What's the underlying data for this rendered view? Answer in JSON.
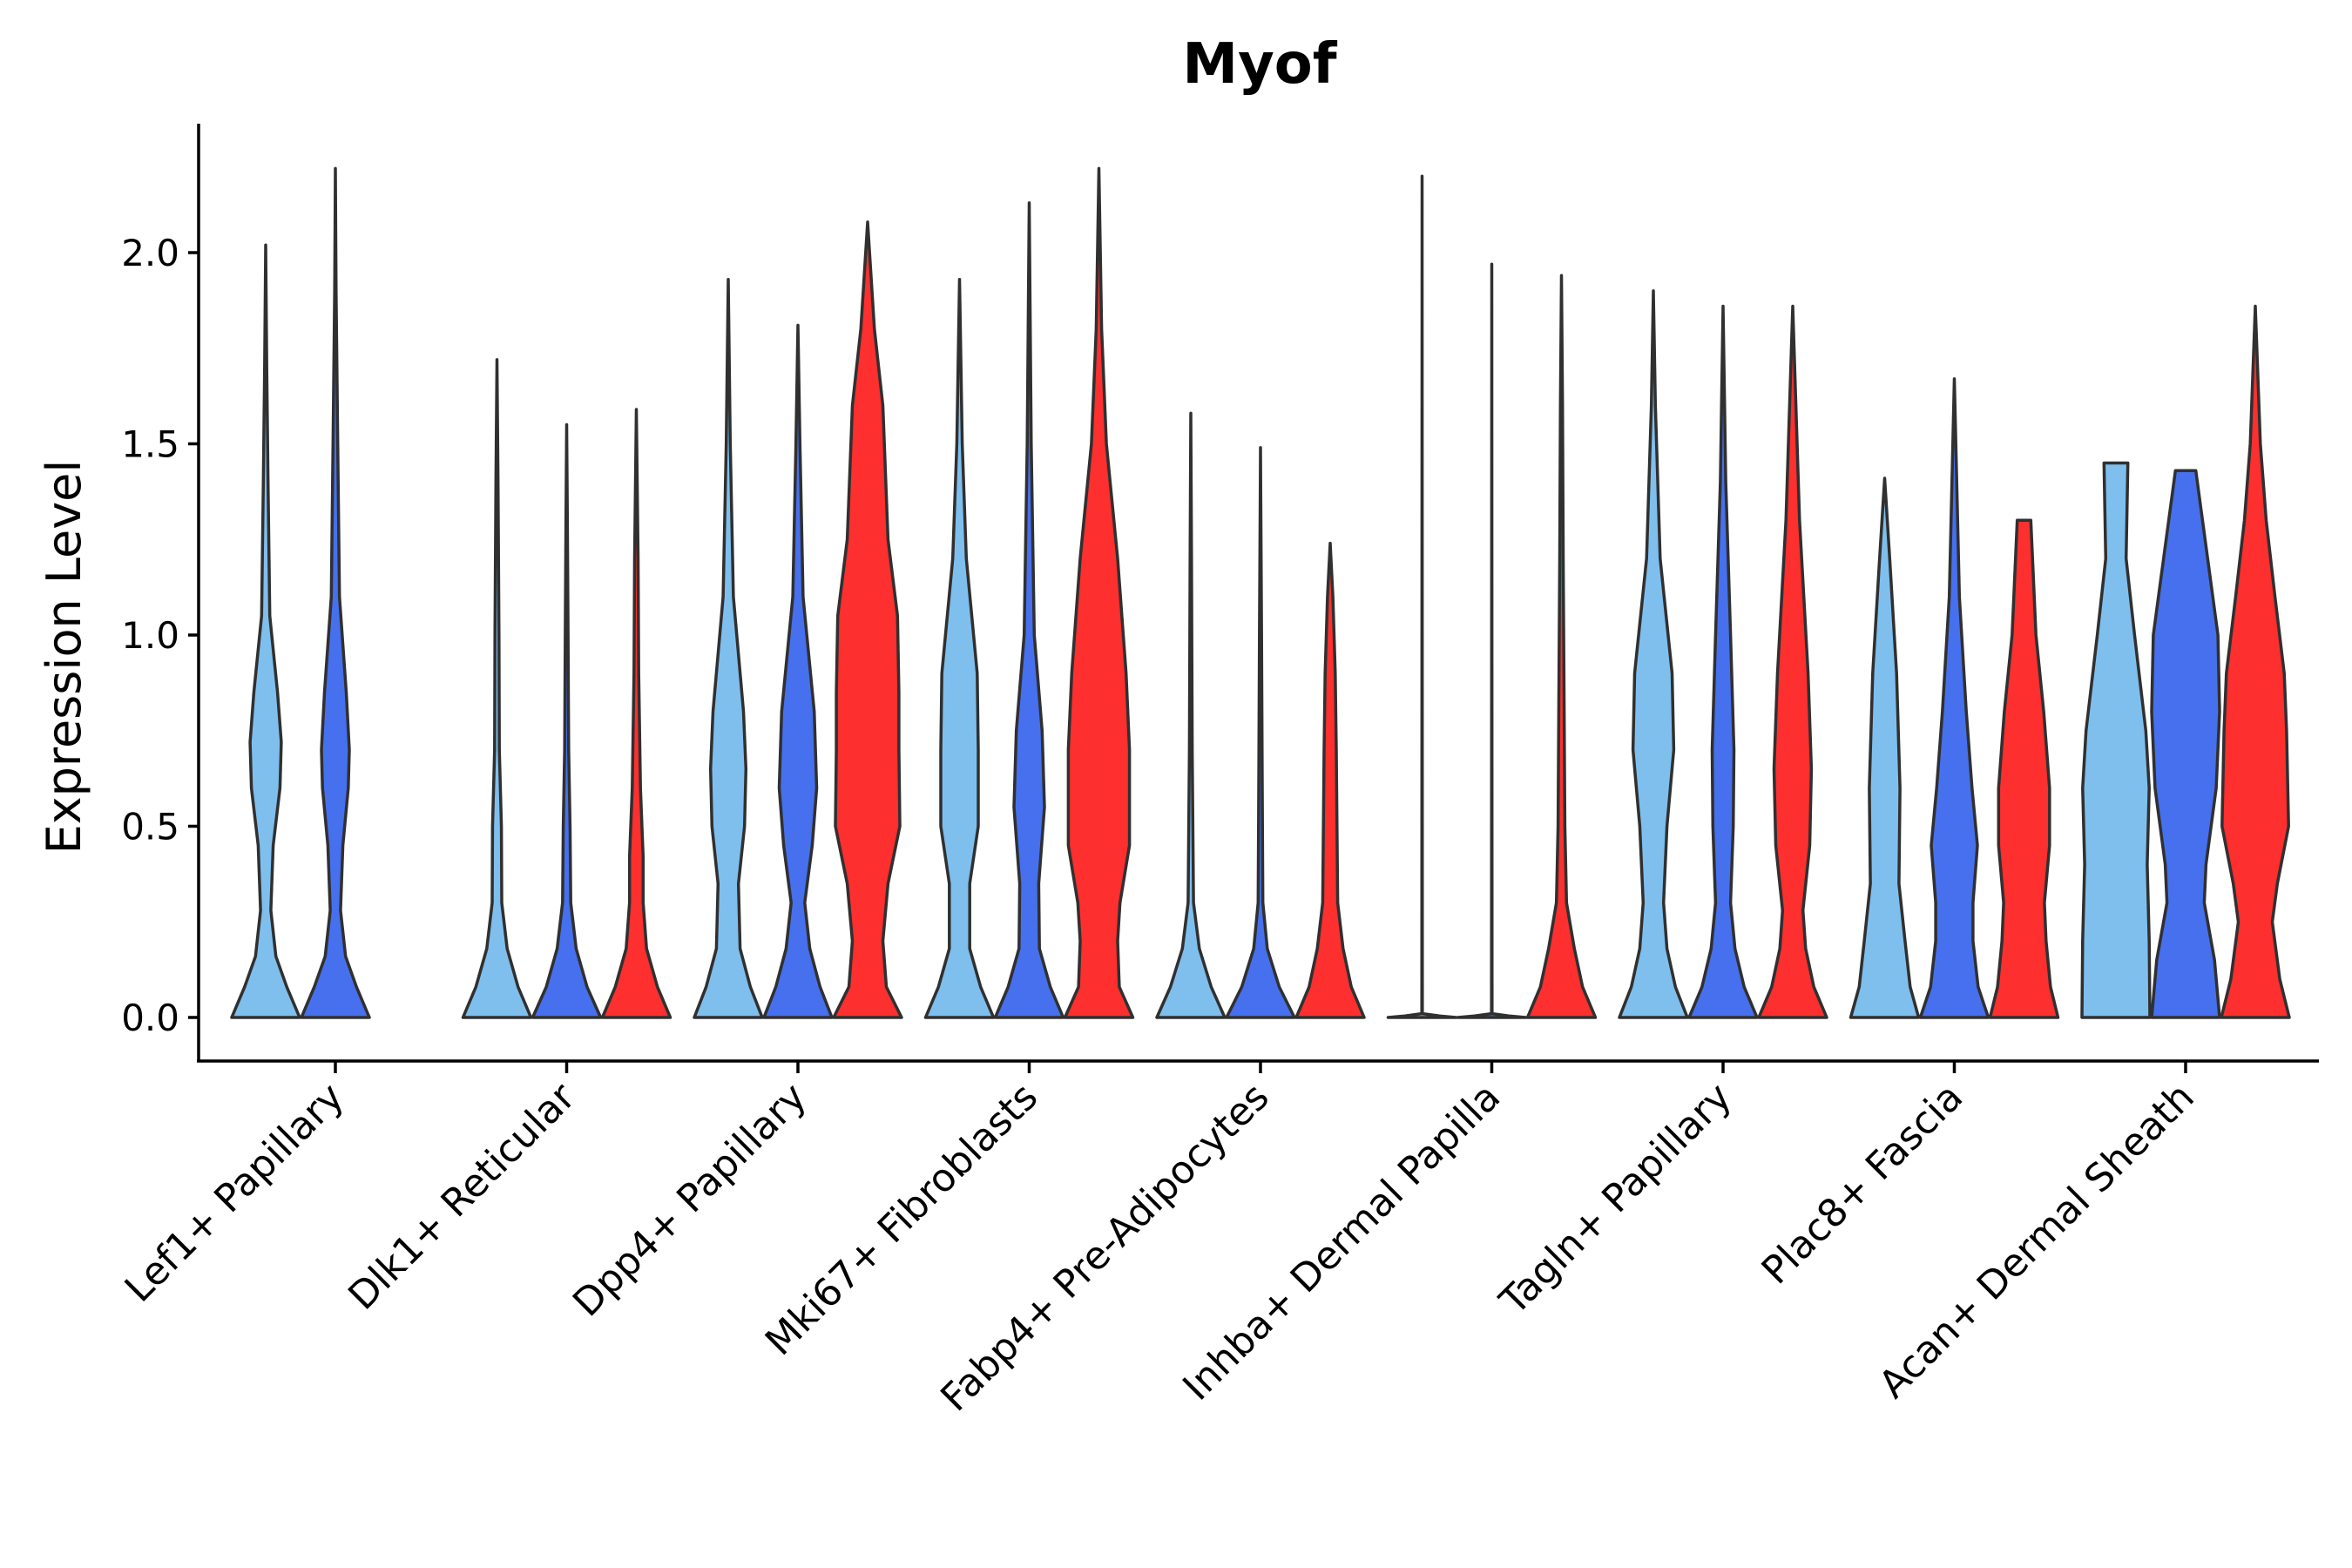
{
  "chart_data": {
    "type": "violin",
    "title": "Myof",
    "xlabel": "",
    "ylabel": "Expression Level",
    "ylim": [
      -0.11,
      2.33
    ],
    "yticks": [
      "0.0",
      "0.5",
      "1.0",
      "1.5",
      "2.0"
    ],
    "categories": [
      "Lef1+ Papillary",
      "Dlk1+ Reticular",
      "Dpp4+ Papillary",
      "Mki67+ Fibroblasts",
      "Fabp4+ Pre-Adipocytes",
      "Inhba+ Dermal Papilla",
      "Tagln+ Papillary",
      "Plac8+ Fascia",
      "Acan+ Dermal Sheath"
    ],
    "series_colors": [
      "#7fbfee",
      "#4670ee",
      "#fd2f2f"
    ],
    "violins": [
      {
        "category": 0,
        "series": 0,
        "max": 2.02,
        "profile": [
          [
            0,
            1
          ],
          [
            0.08,
            0.62
          ],
          [
            0.16,
            0.3
          ],
          [
            0.28,
            0.15
          ],
          [
            0.45,
            0.22
          ],
          [
            0.6,
            0.42
          ],
          [
            0.72,
            0.46
          ],
          [
            0.85,
            0.35
          ],
          [
            1.05,
            0.12
          ],
          [
            1.4,
            0.07
          ],
          [
            1.7,
            0.03
          ],
          [
            2.02,
            0
          ]
        ]
      },
      {
        "category": 0,
        "series": 1,
        "max": 2.22,
        "profile": [
          [
            0,
            1
          ],
          [
            0.08,
            0.62
          ],
          [
            0.16,
            0.3
          ],
          [
            0.28,
            0.15
          ],
          [
            0.45,
            0.22
          ],
          [
            0.6,
            0.38
          ],
          [
            0.7,
            0.41
          ],
          [
            0.85,
            0.32
          ],
          [
            1.1,
            0.12
          ],
          [
            1.5,
            0.07
          ],
          [
            1.9,
            0.02
          ],
          [
            2.22,
            0
          ]
        ]
      },
      {
        "category": 1,
        "series": 0,
        "max": 1.72,
        "profile": [
          [
            0,
            1
          ],
          [
            0.08,
            0.62
          ],
          [
            0.18,
            0.3
          ],
          [
            0.3,
            0.14
          ],
          [
            0.5,
            0.13
          ],
          [
            0.7,
            0.07
          ],
          [
            1.0,
            0.06
          ],
          [
            1.4,
            0.03
          ],
          [
            1.72,
            0
          ]
        ]
      },
      {
        "category": 1,
        "series": 1,
        "max": 1.55,
        "profile": [
          [
            0,
            1
          ],
          [
            0.08,
            0.6
          ],
          [
            0.18,
            0.28
          ],
          [
            0.3,
            0.12
          ],
          [
            0.5,
            0.1
          ],
          [
            0.7,
            0.06
          ],
          [
            1.0,
            0.04
          ],
          [
            1.3,
            0.02
          ],
          [
            1.55,
            0
          ]
        ]
      },
      {
        "category": 1,
        "series": 2,
        "max": 1.59,
        "profile": [
          [
            0,
            1
          ],
          [
            0.08,
            0.62
          ],
          [
            0.18,
            0.3
          ],
          [
            0.3,
            0.2
          ],
          [
            0.42,
            0.2
          ],
          [
            0.6,
            0.12
          ],
          [
            0.9,
            0.07
          ],
          [
            1.2,
            0.05
          ],
          [
            1.59,
            0
          ]
        ]
      },
      {
        "category": 2,
        "series": 0,
        "max": 1.93,
        "profile": [
          [
            0,
            1
          ],
          [
            0.08,
            0.65
          ],
          [
            0.18,
            0.35
          ],
          [
            0.35,
            0.3
          ],
          [
            0.5,
            0.48
          ],
          [
            0.65,
            0.52
          ],
          [
            0.8,
            0.45
          ],
          [
            1.1,
            0.15
          ],
          [
            1.5,
            0.06
          ],
          [
            1.93,
            0
          ]
        ]
      },
      {
        "category": 2,
        "series": 1,
        "max": 1.81,
        "profile": [
          [
            0,
            1
          ],
          [
            0.08,
            0.65
          ],
          [
            0.18,
            0.35
          ],
          [
            0.3,
            0.2
          ],
          [
            0.45,
            0.42
          ],
          [
            0.6,
            0.55
          ],
          [
            0.8,
            0.48
          ],
          [
            1.1,
            0.15
          ],
          [
            1.5,
            0.06
          ],
          [
            1.81,
            0
          ]
        ]
      },
      {
        "category": 2,
        "series": 2,
        "max": 2.08,
        "profile": [
          [
            0,
            1
          ],
          [
            0.08,
            0.55
          ],
          [
            0.2,
            0.45
          ],
          [
            0.35,
            0.6
          ],
          [
            0.5,
            0.95
          ],
          [
            0.7,
            0.92
          ],
          [
            0.85,
            0.92
          ],
          [
            1.05,
            0.88
          ],
          [
            1.25,
            0.6
          ],
          [
            1.6,
            0.45
          ],
          [
            1.8,
            0.2
          ],
          [
            2.08,
            0
          ]
        ]
      },
      {
        "category": 3,
        "series": 0,
        "max": 1.93,
        "profile": [
          [
            0,
            1
          ],
          [
            0.08,
            0.62
          ],
          [
            0.18,
            0.3
          ],
          [
            0.35,
            0.3
          ],
          [
            0.5,
            0.55
          ],
          [
            0.7,
            0.55
          ],
          [
            0.9,
            0.52
          ],
          [
            1.2,
            0.2
          ],
          [
            1.5,
            0.08
          ],
          [
            1.93,
            0
          ]
        ]
      },
      {
        "category": 3,
        "series": 1,
        "max": 2.13,
        "profile": [
          [
            0,
            1
          ],
          [
            0.08,
            0.62
          ],
          [
            0.18,
            0.3
          ],
          [
            0.35,
            0.28
          ],
          [
            0.55,
            0.45
          ],
          [
            0.75,
            0.38
          ],
          [
            1.0,
            0.15
          ],
          [
            1.5,
            0.06
          ],
          [
            2.13,
            0
          ]
        ]
      },
      {
        "category": 3,
        "series": 2,
        "max": 2.22,
        "profile": [
          [
            0,
            1
          ],
          [
            0.08,
            0.6
          ],
          [
            0.2,
            0.55
          ],
          [
            0.3,
            0.62
          ],
          [
            0.45,
            0.9
          ],
          [
            0.7,
            0.9
          ],
          [
            0.9,
            0.8
          ],
          [
            1.2,
            0.55
          ],
          [
            1.5,
            0.22
          ],
          [
            1.8,
            0.08
          ],
          [
            2.22,
            0
          ]
        ]
      },
      {
        "category": 4,
        "series": 0,
        "max": 1.58,
        "profile": [
          [
            0,
            1
          ],
          [
            0.08,
            0.6
          ],
          [
            0.18,
            0.25
          ],
          [
            0.3,
            0.08
          ],
          [
            0.7,
            0.04
          ],
          [
            1.2,
            0.02
          ],
          [
            1.58,
            0
          ]
        ]
      },
      {
        "category": 4,
        "series": 1,
        "max": 1.49,
        "profile": [
          [
            0,
            1
          ],
          [
            0.08,
            0.55
          ],
          [
            0.18,
            0.2
          ],
          [
            0.3,
            0.07
          ],
          [
            0.6,
            0.05
          ],
          [
            1.0,
            0.03
          ],
          [
            1.49,
            0
          ]
        ]
      },
      {
        "category": 4,
        "series": 2,
        "max": 1.24,
        "profile": [
          [
            0,
            1
          ],
          [
            0.08,
            0.62
          ],
          [
            0.18,
            0.38
          ],
          [
            0.3,
            0.22
          ],
          [
            0.5,
            0.2
          ],
          [
            0.7,
            0.18
          ],
          [
            0.9,
            0.15
          ],
          [
            1.1,
            0.08
          ],
          [
            1.24,
            0
          ]
        ]
      },
      {
        "category": 5,
        "series": 0,
        "max": 2.2,
        "profile": [
          [
            0,
            1
          ],
          [
            0.004,
            0.5
          ],
          [
            0.01,
            0.008
          ],
          [
            2.2,
            0
          ]
        ]
      },
      {
        "category": 5,
        "series": 1,
        "max": 1.97,
        "profile": [
          [
            0,
            1
          ],
          [
            0.004,
            0.5
          ],
          [
            0.01,
            0.008
          ],
          [
            1.97,
            0
          ]
        ]
      },
      {
        "category": 5,
        "series": 2,
        "max": 1.94,
        "profile": [
          [
            0,
            1
          ],
          [
            0.08,
            0.62
          ],
          [
            0.18,
            0.38
          ],
          [
            0.3,
            0.15
          ],
          [
            0.5,
            0.1
          ],
          [
            0.8,
            0.08
          ],
          [
            1.2,
            0.05
          ],
          [
            1.6,
            0.03
          ],
          [
            1.94,
            0
          ]
        ]
      },
      {
        "category": 6,
        "series": 0,
        "max": 1.9,
        "profile": [
          [
            0,
            1
          ],
          [
            0.08,
            0.65
          ],
          [
            0.18,
            0.4
          ],
          [
            0.3,
            0.3
          ],
          [
            0.5,
            0.4
          ],
          [
            0.7,
            0.6
          ],
          [
            0.9,
            0.55
          ],
          [
            1.2,
            0.2
          ],
          [
            1.6,
            0.06
          ],
          [
            1.9,
            0
          ]
        ]
      },
      {
        "category": 6,
        "series": 1,
        "max": 1.86,
        "profile": [
          [
            0,
            1
          ],
          [
            0.08,
            0.62
          ],
          [
            0.18,
            0.35
          ],
          [
            0.3,
            0.22
          ],
          [
            0.5,
            0.3
          ],
          [
            0.7,
            0.32
          ],
          [
            1.0,
            0.22
          ],
          [
            1.4,
            0.08
          ],
          [
            1.86,
            0
          ]
        ]
      },
      {
        "category": 6,
        "series": 2,
        "max": 1.86,
        "profile": [
          [
            0,
            1
          ],
          [
            0.08,
            0.62
          ],
          [
            0.18,
            0.38
          ],
          [
            0.28,
            0.3
          ],
          [
            0.45,
            0.5
          ],
          [
            0.65,
            0.55
          ],
          [
            0.9,
            0.45
          ],
          [
            1.3,
            0.2
          ],
          [
            1.86,
            0
          ]
        ]
      },
      {
        "category": 7,
        "series": 0,
        "max": 1.41,
        "profile": [
          [
            0,
            1
          ],
          [
            0.08,
            0.75
          ],
          [
            0.2,
            0.6
          ],
          [
            0.35,
            0.42
          ],
          [
            0.6,
            0.45
          ],
          [
            0.9,
            0.35
          ],
          [
            1.2,
            0.15
          ],
          [
            1.41,
            0
          ]
        ]
      },
      {
        "category": 7,
        "series": 1,
        "max": 1.67,
        "profile": [
          [
            0,
            1
          ],
          [
            0.08,
            0.7
          ],
          [
            0.2,
            0.55
          ],
          [
            0.3,
            0.55
          ],
          [
            0.45,
            0.68
          ],
          [
            0.6,
            0.52
          ],
          [
            0.8,
            0.35
          ],
          [
            1.1,
            0.15
          ],
          [
            1.67,
            0
          ]
        ]
      },
      {
        "category": 7,
        "series": 2,
        "max": 1.3,
        "profile": [
          [
            0,
            1
          ],
          [
            0.08,
            0.78
          ],
          [
            0.2,
            0.65
          ],
          [
            0.3,
            0.6
          ],
          [
            0.45,
            0.75
          ],
          [
            0.6,
            0.75
          ],
          [
            0.8,
            0.58
          ],
          [
            1.0,
            0.35
          ],
          [
            1.3,
            0.2
          ],
          [
            1.3,
            0
          ]
        ]
      },
      {
        "category": 8,
        "series": 0,
        "max": 1.45,
        "profile": [
          [
            0,
            1
          ],
          [
            0.2,
            0.98
          ],
          [
            0.4,
            0.92
          ],
          [
            0.6,
            0.98
          ],
          [
            0.75,
            0.88
          ],
          [
            1.0,
            0.55
          ],
          [
            1.2,
            0.3
          ],
          [
            1.45,
            0.35
          ],
          [
            1.45,
            0
          ]
        ]
      },
      {
        "category": 8,
        "series": 1,
        "max": 1.43,
        "profile": [
          [
            0,
            1
          ],
          [
            0.15,
            0.85
          ],
          [
            0.3,
            0.55
          ],
          [
            0.4,
            0.6
          ],
          [
            0.6,
            0.9
          ],
          [
            0.8,
            1
          ],
          [
            1.0,
            0.95
          ],
          [
            1.2,
            0.65
          ],
          [
            1.43,
            0.3
          ],
          [
            1.43,
            0
          ]
        ]
      },
      {
        "category": 8,
        "series": 2,
        "max": 1.86,
        "profile": [
          [
            0,
            1
          ],
          [
            0.1,
            0.72
          ],
          [
            0.25,
            0.5
          ],
          [
            0.35,
            0.65
          ],
          [
            0.5,
            0.98
          ],
          [
            0.75,
            0.92
          ],
          [
            0.9,
            0.85
          ],
          [
            1.1,
            0.58
          ],
          [
            1.3,
            0.32
          ],
          [
            1.5,
            0.15
          ],
          [
            1.86,
            0
          ]
        ]
      }
    ]
  }
}
